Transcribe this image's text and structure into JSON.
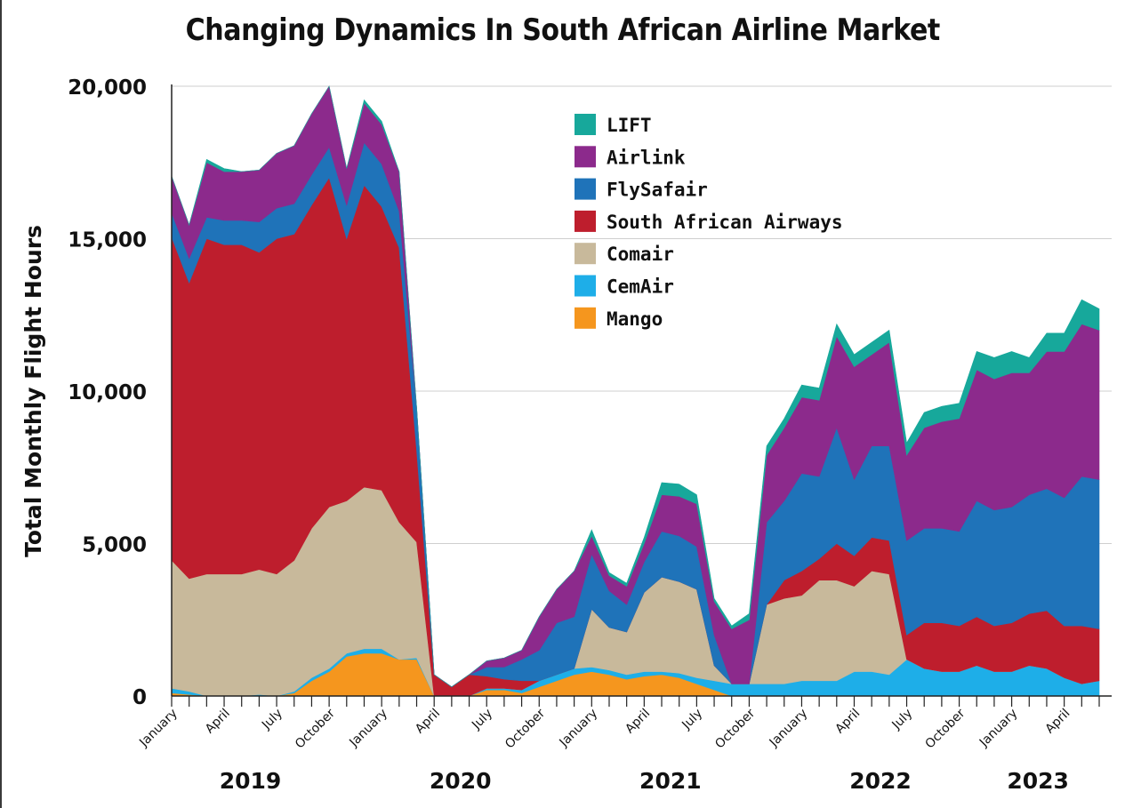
{
  "chart_data": {
    "type": "area",
    "stacked": true,
    "title": "Changing Dynamics In South African Airline Market",
    "ylabel": "Total Monthly Flight Hours",
    "xlabel": "",
    "ylim": [
      0,
      20000
    ],
    "yticks": [
      0,
      5000,
      10000,
      15000,
      20000
    ],
    "ytick_labels": [
      "0",
      "5,000",
      "10,000",
      "15,000",
      "20,000"
    ],
    "grid": true,
    "legend": "top-center",
    "x": [
      "2019-01",
      "2019-02",
      "2019-03",
      "2019-04",
      "2019-05",
      "2019-06",
      "2019-07",
      "2019-08",
      "2019-09",
      "2019-10",
      "2019-11",
      "2019-12",
      "2020-01",
      "2020-02",
      "2020-03",
      "2020-04",
      "2020-05",
      "2020-06",
      "2020-07",
      "2020-08",
      "2020-09",
      "2020-10",
      "2020-11",
      "2020-12",
      "2021-01",
      "2021-02",
      "2021-03",
      "2021-04",
      "2021-05",
      "2021-06",
      "2021-07",
      "2021-08",
      "2021-09",
      "2021-10",
      "2021-11",
      "2021-12",
      "2022-01",
      "2022-02",
      "2022-03",
      "2022-04",
      "2022-05",
      "2022-06",
      "2022-07",
      "2022-08",
      "2022-09",
      "2022-10",
      "2022-11",
      "2022-12",
      "2023-01",
      "2023-02",
      "2023-03",
      "2023-04",
      "2023-05",
      "2023-06"
    ],
    "x_tick_labels": [
      {
        "month": "2019-01",
        "label": "January"
      },
      {
        "month": "2019-04",
        "label": "April"
      },
      {
        "month": "2019-07",
        "label": "July"
      },
      {
        "month": "2019-10",
        "label": "October"
      },
      {
        "month": "2020-01",
        "label": "January"
      },
      {
        "month": "2020-04",
        "label": "April"
      },
      {
        "month": "2020-07",
        "label": "July"
      },
      {
        "month": "2020-10",
        "label": "October"
      },
      {
        "month": "2021-01",
        "label": "January"
      },
      {
        "month": "2021-04",
        "label": "April"
      },
      {
        "month": "2021-07",
        "label": "July"
      },
      {
        "month": "2021-10",
        "label": "October"
      },
      {
        "month": "2022-01",
        "label": "January"
      },
      {
        "month": "2022-04",
        "label": "April"
      },
      {
        "month": "2022-07",
        "label": "July"
      },
      {
        "month": "2022-10",
        "label": "October"
      },
      {
        "month": "2023-01",
        "label": "January"
      },
      {
        "month": "2023-04",
        "label": "April"
      }
    ],
    "year_labels": [
      {
        "label": "2019",
        "month": "2019-06"
      },
      {
        "label": "2020",
        "month": "2020-06"
      },
      {
        "label": "2021",
        "month": "2021-06"
      },
      {
        "label": "2022",
        "month": "2022-06"
      },
      {
        "label": "2023",
        "month": "2023-03"
      }
    ],
    "series": [
      {
        "name": "Mango",
        "color": "#f5961e",
        "values": [
          100,
          50,
          0,
          0,
          0,
          0,
          0,
          100,
          500,
          800,
          1300,
          1400,
          1400,
          1200,
          1200,
          0,
          0,
          0,
          200,
          200,
          100,
          300,
          500,
          700,
          800,
          700,
          550,
          650,
          700,
          600,
          400,
          200,
          0,
          0,
          0,
          0,
          0,
          0,
          0,
          0,
          0,
          0,
          0,
          0,
          0,
          0,
          0,
          0,
          0,
          0,
          0,
          0,
          0,
          0
        ]
      },
      {
        "name": "CemAir",
        "color": "#1eaee8",
        "values": [
          150,
          100,
          0,
          0,
          0,
          50,
          0,
          50,
          100,
          100,
          100,
          150,
          150,
          0,
          50,
          0,
          0,
          0,
          50,
          50,
          100,
          200,
          200,
          200,
          150,
          150,
          150,
          150,
          100,
          150,
          200,
          300,
          400,
          400,
          400,
          400,
          500,
          500,
          500,
          800,
          800,
          700,
          1200,
          900,
          800,
          800,
          1000,
          800,
          800,
          1000,
          900,
          600,
          400,
          500
        ]
      },
      {
        "name": "Comair",
        "color": "#c8b99b",
        "values": [
          4200,
          3700,
          4000,
          4000,
          4000,
          4100,
          4000,
          4300,
          4900,
          5300,
          5000,
          5300,
          5200,
          4500,
          3800,
          0,
          0,
          0,
          0,
          0,
          0,
          0,
          0,
          0,
          1900,
          1400,
          1400,
          2600,
          3100,
          3000,
          2900,
          500,
          0,
          0,
          2600,
          2800,
          2800,
          3300,
          3300,
          2800,
          3300,
          3300,
          0,
          0,
          0,
          0,
          0,
          0,
          0,
          0,
          0,
          0,
          0,
          0
        ]
      },
      {
        "name": "South African Airways",
        "color": "#be1e2d",
        "values": [
          10600,
          9700,
          11000,
          10800,
          10800,
          10400,
          11000,
          10700,
          10600,
          10800,
          8600,
          9900,
          9300,
          9000,
          3000,
          700,
          300,
          700,
          400,
          300,
          300,
          0,
          0,
          0,
          0,
          0,
          0,
          0,
          0,
          0,
          0,
          0,
          0,
          0,
          0,
          600,
          800,
          700,
          1200,
          1000,
          1100,
          1100,
          800,
          1500,
          1600,
          1500,
          1600,
          1500,
          1600,
          1700,
          1900,
          1700,
          1900,
          1700
        ]
      },
      {
        "name": "FlySafair",
        "color": "#1f73b9",
        "values": [
          800,
          800,
          700,
          800,
          800,
          1000,
          1000,
          1000,
          1000,
          1000,
          1100,
          1400,
          1400,
          1200,
          1400,
          0,
          0,
          0,
          300,
          400,
          700,
          1000,
          1700,
          1700,
          1800,
          1200,
          900,
          1000,
          1500,
          1500,
          1400,
          1000,
          0,
          0,
          2700,
          2600,
          3200,
          2700,
          3800,
          2500,
          3000,
          3100,
          3100,
          3100,
          3100,
          3100,
          3800,
          3800,
          3800,
          3900,
          4000,
          4200,
          4900,
          4900
        ]
      },
      {
        "name": "Airlink",
        "color": "#8c2a8c",
        "values": [
          1200,
          1100,
          1800,
          1600,
          1600,
          1700,
          1800,
          1900,
          2000,
          2000,
          1200,
          1300,
          1300,
          1300,
          0,
          0,
          0,
          0,
          200,
          300,
          300,
          1100,
          1100,
          1500,
          600,
          500,
          600,
          600,
          1200,
          1300,
          1400,
          1100,
          1800,
          2100,
          2200,
          2400,
          2500,
          2500,
          3000,
          3700,
          3000,
          3400,
          2800,
          3300,
          3500,
          3700,
          4300,
          4300,
          4400,
          4000,
          4500,
          4800,
          5000,
          4900
        ]
      },
      {
        "name": "LIFT",
        "color": "#17a89b",
        "values": [
          0,
          0,
          100,
          100,
          0,
          0,
          0,
          0,
          0,
          0,
          0,
          100,
          100,
          0,
          0,
          0,
          0,
          0,
          0,
          0,
          0,
          0,
          0,
          0,
          200,
          100,
          100,
          200,
          400,
          400,
          300,
          100,
          100,
          200,
          300,
          300,
          400,
          400,
          400,
          400,
          400,
          400,
          400,
          500,
          500,
          500,
          600,
          700,
          700,
          500,
          600,
          600,
          800,
          700
        ]
      }
    ],
    "legend_order": [
      "LIFT",
      "Airlink",
      "FlySafair",
      "South African Airways",
      "Comair",
      "CemAir",
      "Mango"
    ]
  }
}
